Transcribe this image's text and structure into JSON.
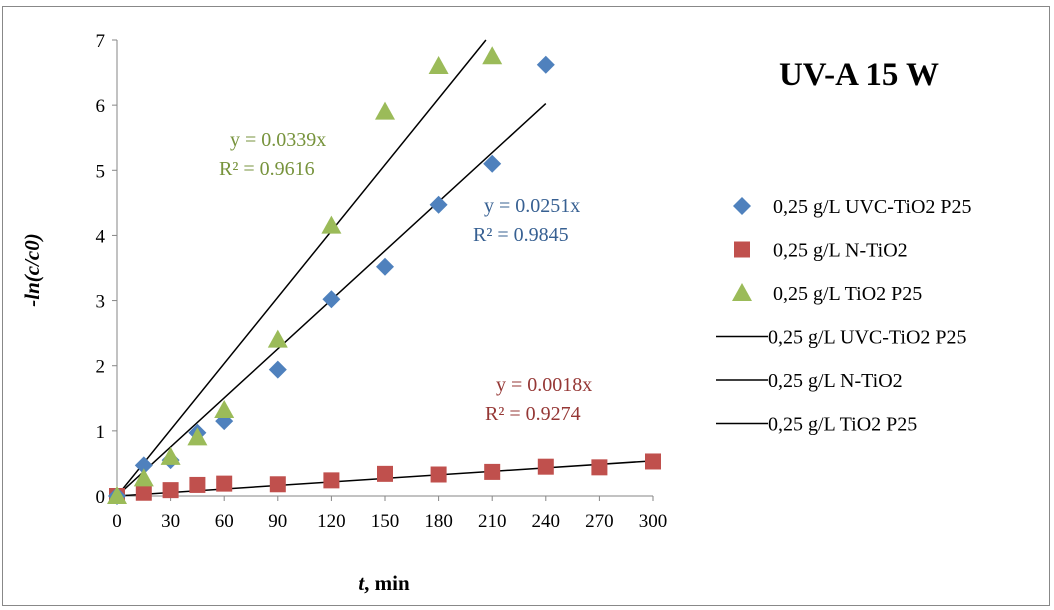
{
  "chart_data": {
    "type": "scatter",
    "title": "UV-A 15 W",
    "xlabel_italic": "t",
    "xlabel_rest": ", min",
    "ylabel": "-ln(c/c0)",
    "xlim": [
      0,
      300
    ],
    "ylim": [
      0,
      7
    ],
    "xticks": [
      "0",
      "30",
      "60",
      "90",
      "120",
      "150",
      "180",
      "210",
      "240",
      "270",
      "300"
    ],
    "yticks": [
      "0",
      "1",
      "2",
      "3",
      "4",
      "5",
      "6",
      "7"
    ],
    "grid": false,
    "legend_position": "right",
    "series": [
      {
        "name": "0,25 g/L UVC-TiO2 P25",
        "marker": "diamond",
        "color": "#4F81BD",
        "x": [
          0,
          15,
          30,
          45,
          60,
          90,
          120,
          150,
          180,
          210,
          240
        ],
        "y": [
          0.0,
          0.47,
          0.55,
          0.97,
          1.15,
          1.94,
          3.02,
          3.52,
          4.47,
          5.1,
          6.62
        ]
      },
      {
        "name": "0,25 g/L N-TiO2",
        "marker": "square",
        "color": "#C0504D",
        "x": [
          0,
          15,
          30,
          45,
          60,
          90,
          120,
          150,
          180,
          210,
          240,
          270,
          300
        ],
        "y": [
          0.0,
          0.05,
          0.09,
          0.17,
          0.19,
          0.18,
          0.24,
          0.34,
          0.33,
          0.37,
          0.45,
          0.44,
          0.53
        ]
      },
      {
        "name": "0,25 g/L TiO2 P25",
        "marker": "triangle",
        "color": "#9BBB59",
        "x": [
          0,
          15,
          30,
          45,
          60,
          90,
          120,
          150,
          180,
          210
        ],
        "y": [
          0.0,
          0.27,
          0.6,
          0.9,
          1.32,
          2.4,
          4.15,
          5.9,
          6.6,
          6.75
        ]
      }
    ],
    "trendlines": [
      {
        "name": "0,25 g/L UVC-TiO2 P25",
        "slope": 0.0251,
        "x_end": 240,
        "color": "#000000"
      },
      {
        "name": "0,25 g/L N-TiO2",
        "slope": 0.0018,
        "x_end": 300,
        "color": "#000000"
      },
      {
        "name": "0,25 g/L TiO2 P25",
        "slope": 0.0339,
        "x_end": 210,
        "color": "#000000"
      }
    ],
    "annotations": [
      {
        "eq": "y = 0.0339x",
        "r2": "R² = 0.9616",
        "color": "#77933C"
      },
      {
        "eq": "y = 0.0251x",
        "r2": "R² = 0.9845",
        "color": "#376092"
      },
      {
        "eq": "y = 0.0018x",
        "r2": "R² = 0.9274",
        "color": "#953735"
      }
    ]
  }
}
